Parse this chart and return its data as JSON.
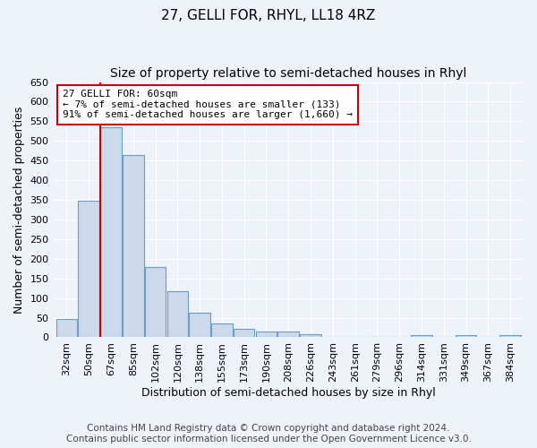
{
  "title": "27, GELLI FOR, RHYL, LL18 4RZ",
  "subtitle": "Size of property relative to semi-detached houses in Rhyl",
  "xlabel": "Distribution of semi-detached houses by size in Rhyl",
  "ylabel": "Number of semi-detached properties",
  "bin_labels": [
    "32sqm",
    "50sqm",
    "67sqm",
    "85sqm",
    "102sqm",
    "120sqm",
    "138sqm",
    "155sqm",
    "173sqm",
    "190sqm",
    "208sqm",
    "226sqm",
    "243sqm",
    "261sqm",
    "279sqm",
    "296sqm",
    "314sqm",
    "331sqm",
    "349sqm",
    "367sqm",
    "384sqm"
  ],
  "bin_values": [
    47,
    347,
    535,
    465,
    178,
    118,
    62,
    35,
    22,
    15,
    15,
    8,
    0,
    0,
    0,
    0,
    5,
    0,
    5,
    0,
    5
  ],
  "bar_color": "#ccd9ea",
  "bar_edge_color": "#6a9ec5",
  "bar_edge_width": 0.8,
  "marker_color": "#cc0000",
  "annotation_title": "27 GELLI FOR: 60sqm",
  "annotation_line1": "← 7% of semi-detached houses are smaller (133)",
  "annotation_line2": "91% of semi-detached houses are larger (1,660) →",
  "annotation_box_color": "#cc0000",
  "ylim": [
    0,
    650
  ],
  "yticks": [
    0,
    50,
    100,
    150,
    200,
    250,
    300,
    350,
    400,
    450,
    500,
    550,
    600,
    650
  ],
  "footer_line1": "Contains HM Land Registry data © Crown copyright and database right 2024.",
  "footer_line2": "Contains public sector information licensed under the Open Government Licence v3.0.",
  "bg_color": "#eef2f9",
  "plot_bg_color": "#eef2f9",
  "grid_color": "#ffffff",
  "title_fontsize": 11,
  "subtitle_fontsize": 10,
  "axis_label_fontsize": 9,
  "tick_fontsize": 8,
  "footer_fontsize": 7.5
}
